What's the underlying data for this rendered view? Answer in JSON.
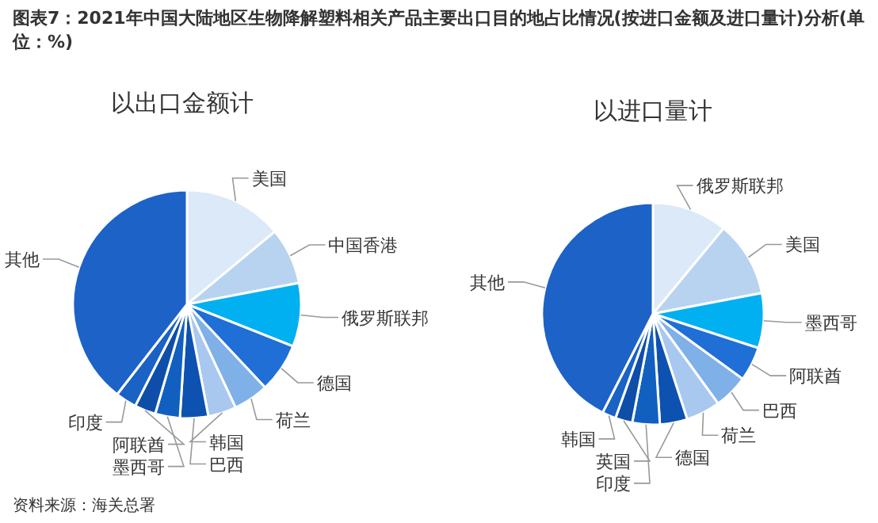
{
  "chart_data": [
    {
      "type": "pie",
      "title": "图表7：2021年中国大陆地区生物降解塑料相关产品主要出口目的地占比情况(按进口金额及进口量计)分析(单位：%)",
      "subtitle": "以出口金额计",
      "categories": [
        "美国",
        "中国香港",
        "俄罗斯联邦",
        "德国",
        "荷兰",
        "韩国",
        "巴西",
        "墨西哥",
        "阿联酋",
        "印度",
        "其他"
      ],
      "values": [
        14,
        8,
        9,
        7,
        5,
        4,
        4,
        3.5,
        3,
        3,
        39.5
      ],
      "colors": [
        "#dbe9f8",
        "#b8d3f0",
        "#00b0f0",
        "#1f6fd6",
        "#7fb0e8",
        "#a9c8ef",
        "#0d52b0",
        "#1160c0",
        "#0e4ea8",
        "#1a62c4",
        "#1d62c6"
      ],
      "annotations": [
        "资料来源：海关总署"
      ]
    },
    {
      "type": "pie",
      "subtitle": "以进口量计",
      "categories": [
        "俄罗斯联邦",
        "美国",
        "墨西哥",
        "阿联酋",
        "巴西",
        "荷兰",
        "德国",
        "印度",
        "英国",
        "韩国",
        "其他"
      ],
      "values": [
        11,
        11,
        8,
        5,
        5,
        5,
        4,
        4,
        2.5,
        2,
        42.5
      ],
      "colors": [
        "#dbe9f8",
        "#b8d3f0",
        "#00b0f0",
        "#1f6fd6",
        "#7fb0e8",
        "#a9c8ef",
        "#0d52b0",
        "#1160c0",
        "#0e4ea8",
        "#1a62c4",
        "#1d62c6"
      ]
    }
  ]
}
